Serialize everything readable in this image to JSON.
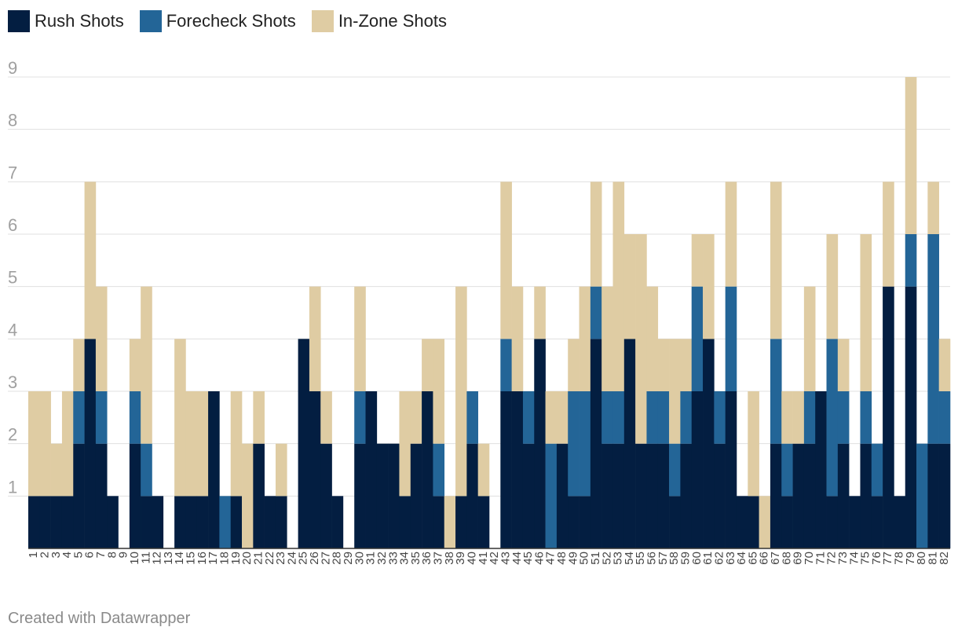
{
  "colors": {
    "rush": "#031e41",
    "forecheck": "#236597",
    "inzone": "#dfcca3",
    "grid": "#e0e0e0",
    "axis_text": "#a0a0a0",
    "baseline": "#333333"
  },
  "legend": [
    {
      "name": "Rush Shots",
      "color": "#031e41"
    },
    {
      "name": "Forecheck Shots",
      "color": "#236597"
    },
    {
      "name": "In-Zone Shots",
      "color": "#dfcca3"
    }
  ],
  "footer": {
    "credit": "Created with Datawrapper"
  },
  "chart_data": {
    "type": "bar",
    "stacked": true,
    "title": "",
    "xlabel": "",
    "ylabel": "",
    "ylim": [
      0,
      9
    ],
    "yticks": [
      1,
      2,
      3,
      4,
      5,
      6,
      7,
      8,
      9
    ],
    "grid": true,
    "legend_position": "top-left",
    "categories": [
      "1",
      "2",
      "3",
      "4",
      "5",
      "6",
      "7",
      "8",
      "9",
      "10",
      "11",
      "12",
      "13",
      "14",
      "15",
      "16",
      "17",
      "18",
      "19",
      "20",
      "21",
      "22",
      "23",
      "24",
      "25",
      "26",
      "27",
      "28",
      "29",
      "30",
      "31",
      "32",
      "33",
      "34",
      "35",
      "36",
      "37",
      "38",
      "39",
      "40",
      "41",
      "42",
      "43",
      "44",
      "45",
      "46",
      "47",
      "48",
      "49",
      "50",
      "51",
      "52",
      "53",
      "54",
      "55",
      "56",
      "57",
      "58",
      "59",
      "60",
      "61",
      "62",
      "63",
      "64",
      "65",
      "66",
      "67",
      "68",
      "69",
      "70",
      "71",
      "72",
      "73",
      "74",
      "75",
      "76",
      "77",
      "78",
      "79",
      "80",
      "81",
      "82"
    ],
    "series": [
      {
        "name": "Rush Shots",
        "values": [
          1,
          1,
          1,
          1,
          2,
          4,
          2,
          1,
          0,
          2,
          1,
          1,
          0,
          1,
          1,
          1,
          3,
          0,
          1,
          0,
          2,
          1,
          1,
          0,
          4,
          3,
          2,
          1,
          0,
          2,
          3,
          2,
          2,
          1,
          2,
          3,
          1,
          0,
          1,
          2,
          1,
          0,
          3,
          3,
          2,
          4,
          0,
          2,
          1,
          1,
          4,
          2,
          2,
          4,
          2,
          2,
          2,
          1,
          2,
          3,
          4,
          2,
          3,
          1,
          1,
          0,
          2,
          1,
          2,
          2,
          3,
          1,
          2,
          1,
          2,
          1,
          5,
          1,
          5,
          0,
          2,
          2
        ]
      },
      {
        "name": "Forecheck Shots",
        "values": [
          0,
          0,
          0,
          0,
          1,
          0,
          1,
          0,
          0,
          1,
          1,
          0,
          0,
          0,
          0,
          0,
          0,
          1,
          0,
          0,
          0,
          0,
          0,
          0,
          0,
          0,
          0,
          0,
          0,
          1,
          0,
          0,
          0,
          0,
          0,
          0,
          1,
          0,
          0,
          1,
          0,
          0,
          1,
          0,
          1,
          0,
          2,
          0,
          2,
          2,
          1,
          1,
          1,
          0,
          0,
          1,
          1,
          1,
          1,
          2,
          0,
          1,
          2,
          0,
          0,
          0,
          2,
          1,
          0,
          1,
          0,
          3,
          1,
          0,
          1,
          1,
          0,
          0,
          1,
          2,
          4,
          1
        ]
      },
      {
        "name": "In-Zone Shots",
        "values": [
          2,
          2,
          1,
          2,
          1,
          3,
          2,
          0,
          0,
          1,
          3,
          0,
          0,
          3,
          2,
          2,
          0,
          0,
          2,
          2,
          1,
          0,
          1,
          0,
          0,
          2,
          1,
          0,
          0,
          2,
          0,
          0,
          0,
          2,
          1,
          1,
          2,
          1,
          4,
          0,
          1,
          0,
          3,
          2,
          0,
          1,
          1,
          1,
          1,
          2,
          2,
          2,
          4,
          2,
          4,
          2,
          1,
          2,
          1,
          1,
          2,
          0,
          2,
          0,
          2,
          1,
          3,
          1,
          1,
          2,
          0,
          2,
          1,
          0,
          3,
          0,
          2,
          0,
          3,
          0,
          1,
          1
        ]
      }
    ]
  }
}
